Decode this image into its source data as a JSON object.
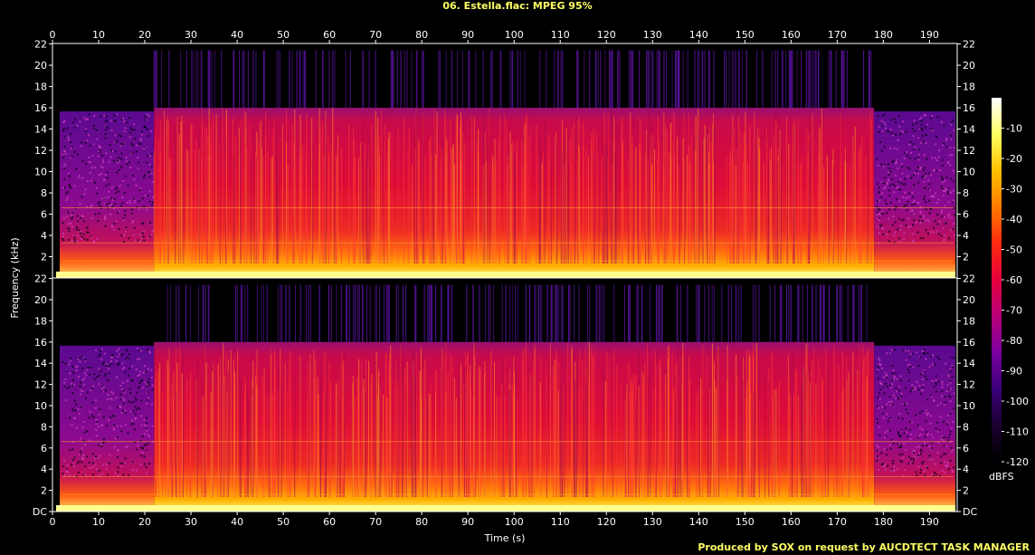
{
  "title": "06. Estella.flac: MPEG 95%",
  "credit": "Produced by SOX on request by AUCDTECT TASK MANAGER",
  "chart_data": {
    "type": "heatmap",
    "title": "06. Estella.flac: MPEG 95%",
    "xlabel": "Time (s)",
    "ylabel": "Frequency (kHz)",
    "xlim": [
      0,
      196
    ],
    "ylim": [
      0,
      22.05
    ],
    "x_ticks": [
      "0",
      "10",
      "20",
      "30",
      "40",
      "50",
      "60",
      "70",
      "80",
      "90",
      "100",
      "110",
      "120",
      "130",
      "140",
      "150",
      "160",
      "170",
      "180",
      "190"
    ],
    "x_tick_values": [
      0,
      10,
      20,
      30,
      40,
      50,
      60,
      70,
      80,
      90,
      100,
      110,
      120,
      130,
      140,
      150,
      160,
      170,
      180,
      190
    ],
    "y_ticks_top": [
      "2",
      "4",
      "6",
      "8",
      "10",
      "12",
      "14",
      "16",
      "18",
      "20",
      "22"
    ],
    "y_ticks_bottom": [
      "DC",
      "2",
      "4",
      "6",
      "8",
      "10",
      "12",
      "14",
      "16",
      "18",
      "20",
      "22"
    ],
    "y_tick_values_top": [
      2,
      4,
      6,
      8,
      10,
      12,
      14,
      16,
      18,
      20,
      22
    ],
    "y_tick_values_bottom": [
      0,
      2,
      4,
      6,
      8,
      10,
      12,
      14,
      16,
      18,
      20,
      22
    ],
    "channels": 2,
    "lowpass_cutoff_khz": 16,
    "intro_end_s": 22,
    "outro_start_s": 178,
    "colorbar": {
      "label": "dBFS",
      "ticks": [
        "-10",
        "-20",
        "-30",
        "-40",
        "-50",
        "-60",
        "-70",
        "-80",
        "-90",
        "-100",
        "-110",
        "-120"
      ],
      "tick_values": [
        -10,
        -20,
        -30,
        -40,
        -50,
        -60,
        -70,
        -80,
        -90,
        -100,
        -110,
        -120
      ],
      "range": [
        -120,
        0
      ],
      "colors": [
        "#000000",
        "#1a0030",
        "#3a0078",
        "#7a00a0",
        "#b8007a",
        "#e4003c",
        "#ff2a10",
        "#ff7a00",
        "#ffc000",
        "#ffff60",
        "#ffffff"
      ]
    }
  }
}
